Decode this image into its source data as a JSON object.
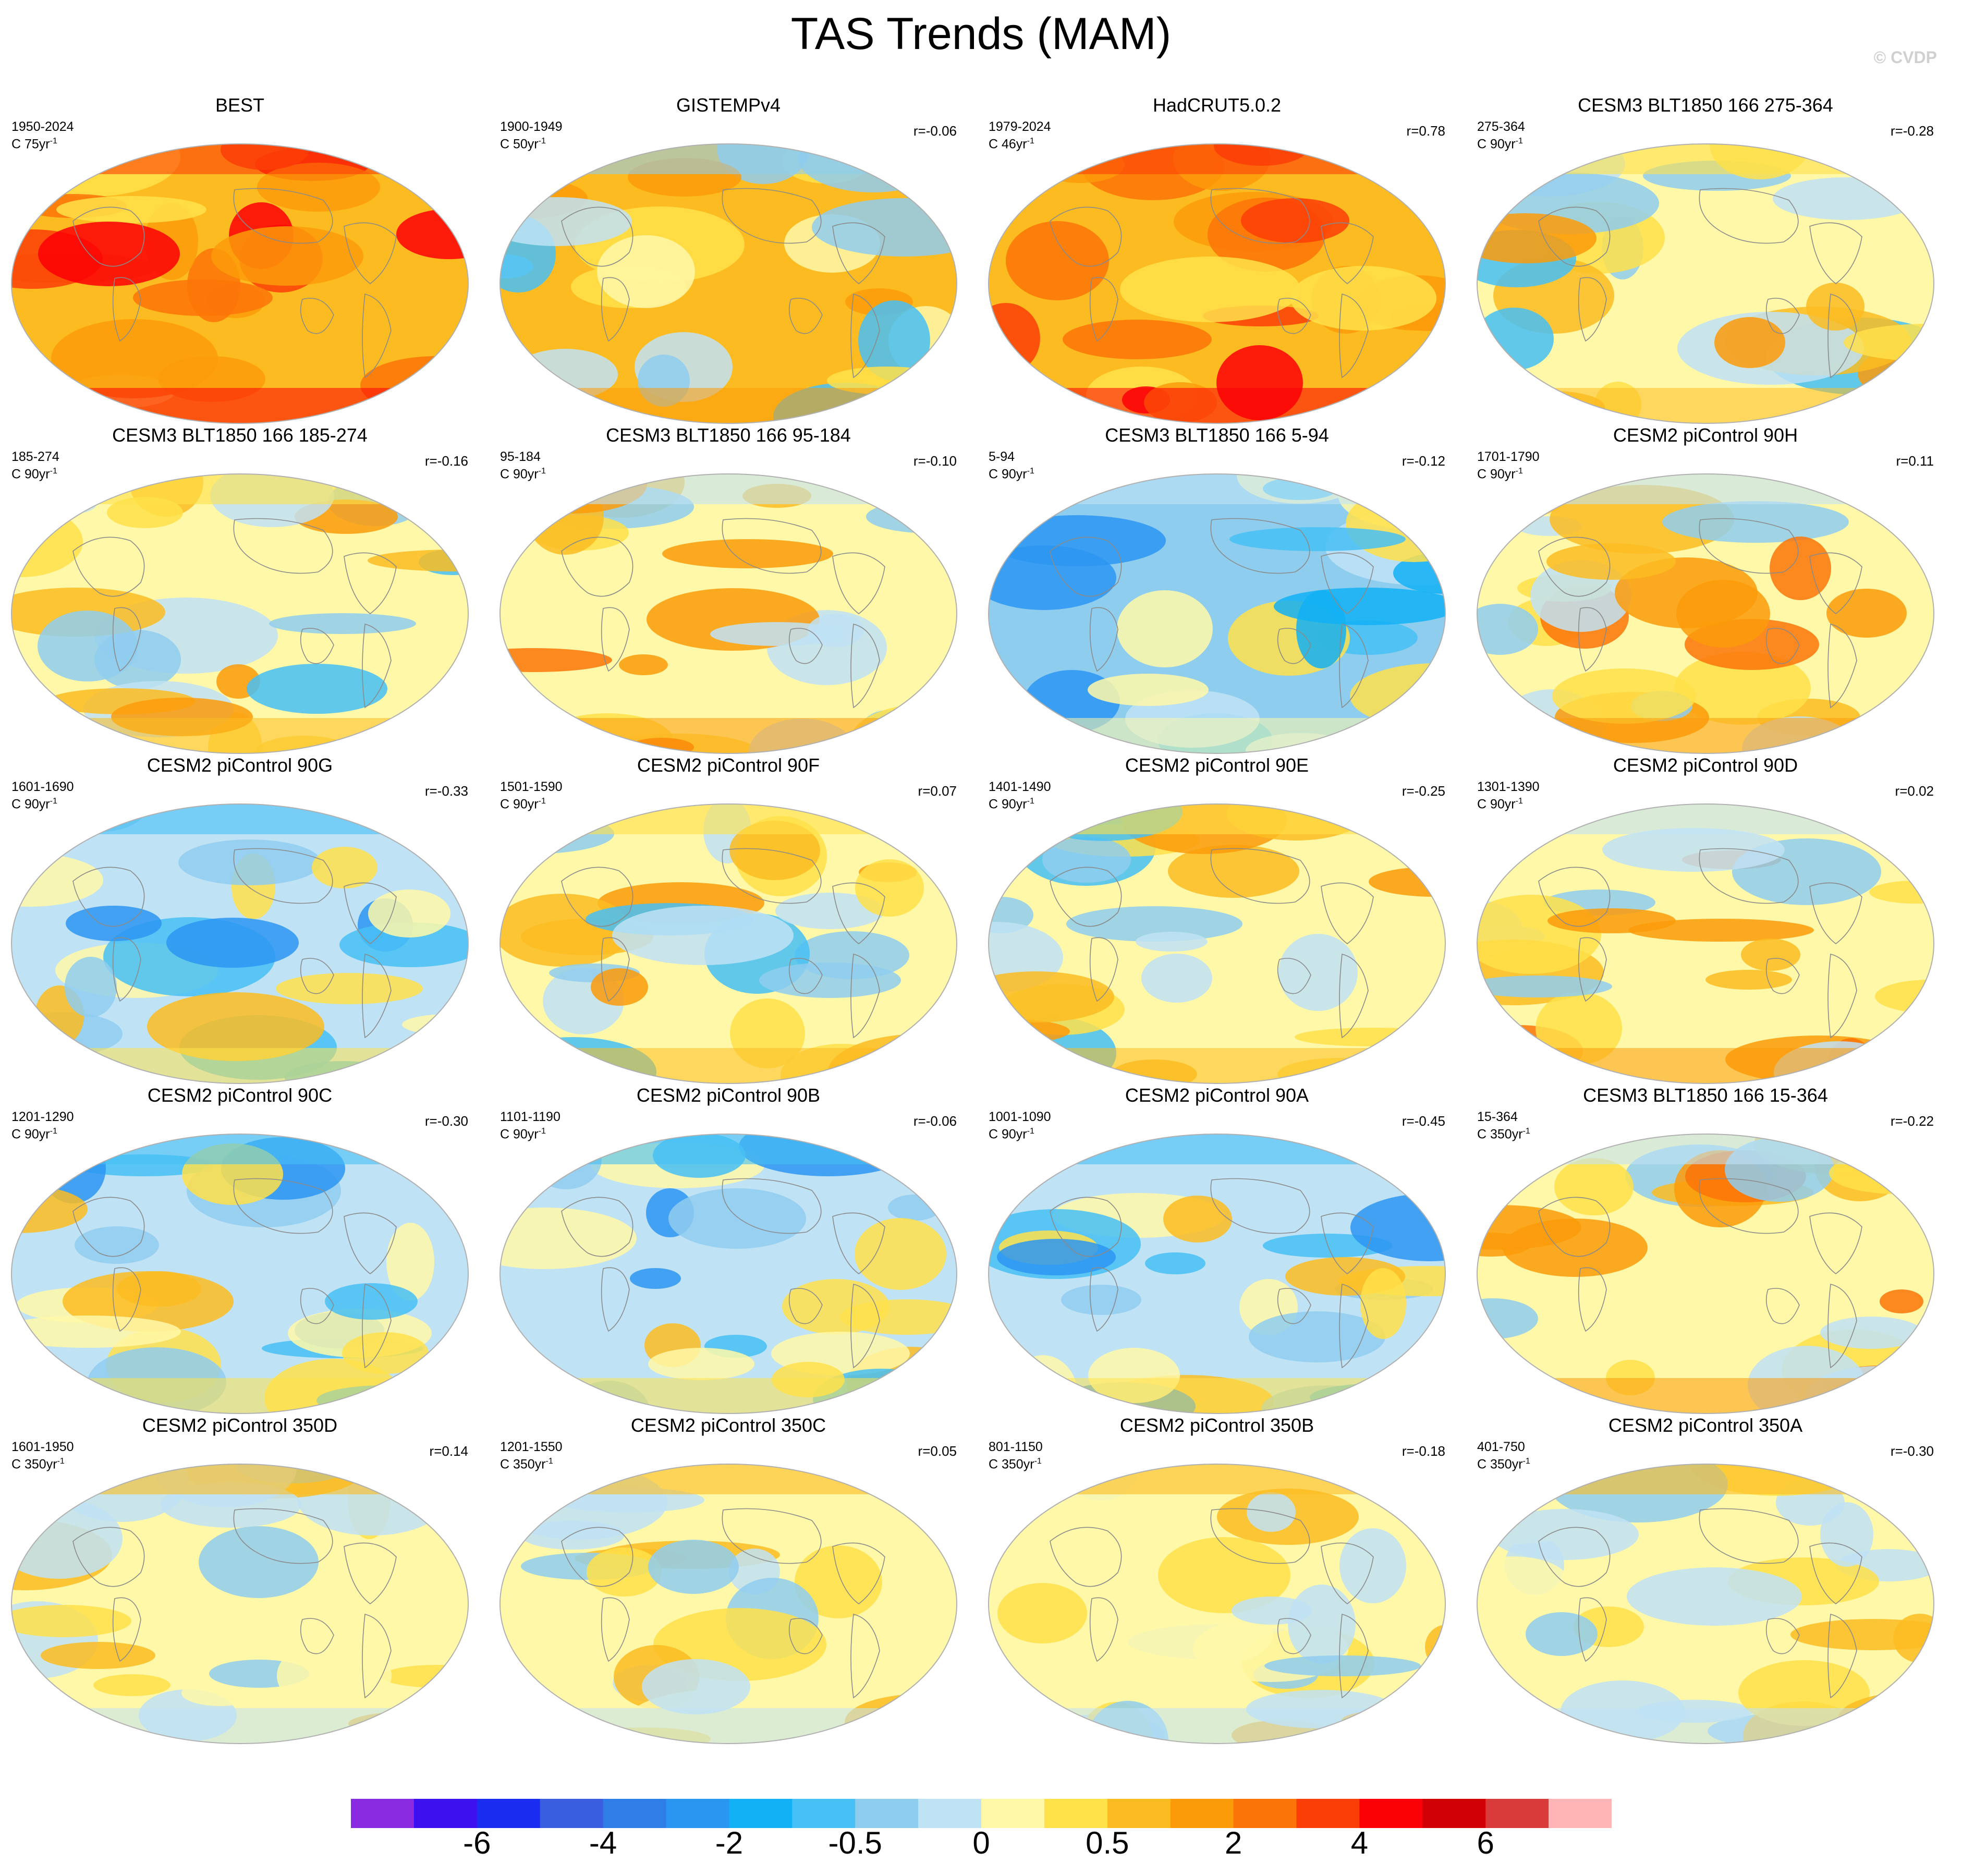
{
  "title": "TAS Trends (MAM)",
  "watermark": "© CVDP",
  "panels": [
    {
      "title": "BEST",
      "period": "1950-2024",
      "units": "C 75yr",
      "units_exp": "-1",
      "r": "",
      "fill": "warm-strong"
    },
    {
      "title": "GISTEMPv4",
      "period": "1900-1949",
      "units": "C 50yr",
      "units_exp": "-1",
      "r": "r=-0.06",
      "fill": "warm"
    },
    {
      "title": "HadCRUT5.0.2",
      "period": "1979-2024",
      "units": "C 46yr",
      "units_exp": "-1",
      "r": "r=0.78",
      "fill": "warm-strong"
    },
    {
      "title": "CESM3 BLT1850 166 275-364",
      "period": "275-364",
      "units": "C 90yr",
      "units_exp": "-1",
      "r": "r=-0.28",
      "fill": "mixed"
    },
    {
      "title": "CESM3 BLT1850 166 185-274",
      "period": "185-274",
      "units": "C 90yr",
      "units_exp": "-1",
      "r": "r=-0.16",
      "fill": "mixed"
    },
    {
      "title": "CESM3 BLT1850 166 95-184",
      "period": "95-184",
      "units": "C 90yr",
      "units_exp": "-1",
      "r": "r=-0.10",
      "fill": "mixed-warm"
    },
    {
      "title": "CESM3 BLT1850 166 5-94",
      "period": "5-94",
      "units": "C 90yr",
      "units_exp": "-1",
      "r": "r=-0.12",
      "fill": "cool"
    },
    {
      "title": "CESM2 piControl 90H",
      "period": "1701-1790",
      "units": "C 90yr",
      "units_exp": "-1",
      "r": "r=0.11",
      "fill": "mixed-warm"
    },
    {
      "title": "CESM2 piControl 90G",
      "period": "1601-1690",
      "units": "C 90yr",
      "units_exp": "-1",
      "r": "r=-0.33",
      "fill": "mixed-cool"
    },
    {
      "title": "CESM2 piControl 90F",
      "period": "1501-1590",
      "units": "C 90yr",
      "units_exp": "-1",
      "r": "r=0.07",
      "fill": "mixed"
    },
    {
      "title": "CESM2 piControl 90E",
      "period": "1401-1490",
      "units": "C 90yr",
      "units_exp": "-1",
      "r": "r=-0.25",
      "fill": "mixed"
    },
    {
      "title": "CESM2 piControl 90D",
      "period": "1301-1390",
      "units": "C 90yr",
      "units_exp": "-1",
      "r": "r=0.02",
      "fill": "mixed-warm"
    },
    {
      "title": "CESM2 piControl 90C",
      "period": "1201-1290",
      "units": "C 90yr",
      "units_exp": "-1",
      "r": "r=-0.30",
      "fill": "mixed-cool"
    },
    {
      "title": "CESM2 piControl 90B",
      "period": "1101-1190",
      "units": "C 90yr",
      "units_exp": "-1",
      "r": "r=-0.06",
      "fill": "mixed-cool"
    },
    {
      "title": "CESM2 piControl 90A",
      "period": "1001-1090",
      "units": "C 90yr",
      "units_exp": "-1",
      "r": "r=-0.45",
      "fill": "mixed-cool"
    },
    {
      "title": "CESM3 BLT1850 166 15-364",
      "period": "15-364",
      "units": "C 350yr",
      "units_exp": "-1",
      "r": "r=-0.22",
      "fill": "mixed-warm"
    },
    {
      "title": "CESM2 piControl 350D",
      "period": "1601-1950",
      "units": "C 350yr",
      "units_exp": "-1",
      "r": "r=0.14",
      "fill": "pale"
    },
    {
      "title": "CESM2 piControl 350C",
      "period": "1201-1550",
      "units": "C 350yr",
      "units_exp": "-1",
      "r": "r=0.05",
      "fill": "pale"
    },
    {
      "title": "CESM2 piControl 350B",
      "period": "801-1150",
      "units": "C 350yr",
      "units_exp": "-1",
      "r": "r=-0.18",
      "fill": "pale"
    },
    {
      "title": "CESM2 piControl 350A",
      "period": "401-750",
      "units": "C 350yr",
      "units_exp": "-1",
      "r": "r=-0.30",
      "fill": "pale"
    }
  ],
  "colorbar": {
    "colors": [
      "#8a2be2",
      "#3d10f0",
      "#1a2cf0",
      "#3a5ee0",
      "#2f7ee8",
      "#2b95f2",
      "#12b0f5",
      "#46c0f5",
      "#8fcdee",
      "#bfe2f5",
      "#fff8a8",
      "#ffe14a",
      "#fcbc21",
      "#fc9b0a",
      "#fb7408",
      "#fb3e07",
      "#fb0005",
      "#d00005",
      "#d93a3a",
      "#ffb5b5"
    ],
    "labels": [
      {
        "text": "-6",
        "boundary": 2
      },
      {
        "text": "-4",
        "boundary": 4
      },
      {
        "text": "-2",
        "boundary": 6
      },
      {
        "text": "-0.5",
        "boundary": 8
      },
      {
        "text": "0",
        "boundary": 10
      },
      {
        "text": "0.5",
        "boundary": 12
      },
      {
        "text": "2",
        "boundary": 14
      },
      {
        "text": "4",
        "boundary": 16
      },
      {
        "text": "6",
        "boundary": 18
      }
    ]
  }
}
